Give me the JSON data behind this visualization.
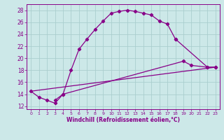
{
  "xlabel": "Windchill (Refroidissement éolien,°C)",
  "bg_color": "#cce8e8",
  "grid_color": "#aacece",
  "line_color": "#880088",
  "xlim": [
    -0.5,
    23.5
  ],
  "ylim": [
    11.5,
    29.0
  ],
  "xticks": [
    0,
    1,
    2,
    3,
    4,
    5,
    6,
    7,
    8,
    9,
    10,
    11,
    12,
    13,
    14,
    15,
    16,
    17,
    18,
    19,
    20,
    21,
    22,
    23
  ],
  "yticks": [
    12,
    14,
    16,
    18,
    20,
    22,
    24,
    26,
    28
  ],
  "curve1_x": [
    0,
    1,
    2,
    3,
    4,
    5,
    6,
    7,
    8,
    9,
    10,
    11,
    12,
    13,
    14,
    15,
    16,
    17,
    18
  ],
  "curve1_y": [
    14.5,
    13.5,
    13.0,
    12.5,
    14.0,
    18.0,
    21.5,
    23.2,
    24.8,
    26.2,
    27.5,
    27.8,
    28.0,
    27.8,
    27.5,
    27.2,
    26.2,
    25.7,
    23.2
  ],
  "curve2_x": [
    18,
    22,
    23
  ],
  "curve2_y": [
    23.2,
    18.5,
    18.5
  ],
  "curve3_x": [
    3,
    4,
    19,
    20,
    22,
    23
  ],
  "curve3_y": [
    13.0,
    14.0,
    19.5,
    18.8,
    18.5,
    18.5
  ],
  "curve4_x": [
    0,
    23
  ],
  "curve4_y": [
    14.5,
    18.5
  ]
}
